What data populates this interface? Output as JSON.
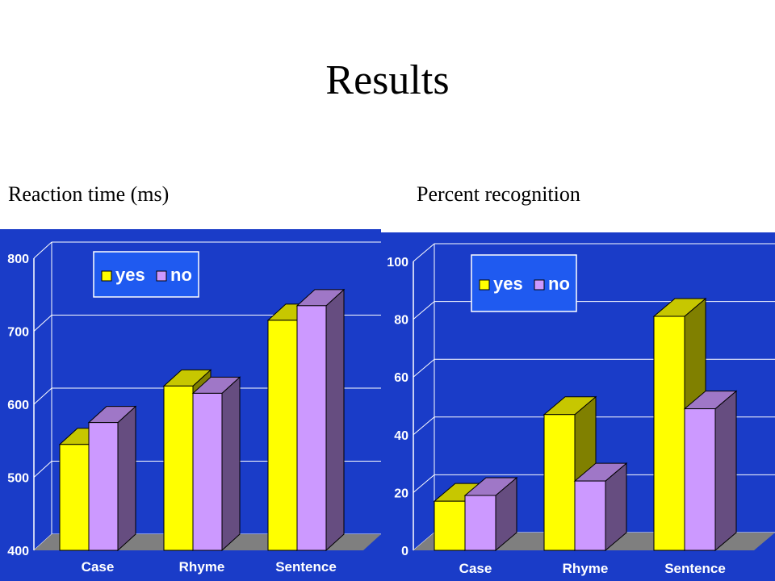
{
  "slide": {
    "title": "Results",
    "left_label": "Reaction time (ms)",
    "right_label": "Percent recognition"
  },
  "colors": {
    "background": "#1a3cc8",
    "floor": "#7f7f7f",
    "yes_bar": "#ffff00",
    "no_bar": "#cc99ff",
    "legend_box": "#1f5af0",
    "axis_text": "#ffffff"
  },
  "chart_data": [
    {
      "type": "bar",
      "title": "Reaction time (ms)",
      "categories": [
        "Case",
        "Rhyme",
        "Sentence"
      ],
      "series": [
        {
          "name": "yes",
          "values": [
            545,
            625,
            715
          ]
        },
        {
          "name": "no",
          "values": [
            575,
            615,
            735
          ]
        }
      ],
      "ylim": [
        400,
        800
      ],
      "yticks": [
        400,
        500,
        600,
        700,
        800
      ],
      "grid": true,
      "legend": "top-left"
    },
    {
      "type": "bar",
      "title": "Percent recognition",
      "categories": [
        "Case",
        "Rhyme",
        "Sentence"
      ],
      "series": [
        {
          "name": "yes",
          "values": [
            17,
            47,
            81
          ]
        },
        {
          "name": "no",
          "values": [
            19,
            24,
            49
          ]
        }
      ],
      "ylim": [
        0,
        100
      ],
      "yticks": [
        0,
        20,
        40,
        60,
        80,
        100
      ],
      "grid": true,
      "legend": "top-left"
    }
  ]
}
